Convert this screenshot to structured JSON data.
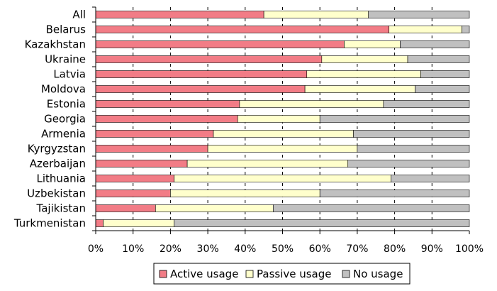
{
  "chart_data": {
    "type": "bar",
    "orientation": "horizontal",
    "stacked": "percent",
    "categories": [
      "All",
      "Belarus",
      "Kazakhstan",
      "Ukraine",
      "Latvia",
      "Moldova",
      "Estonia",
      "Georgia",
      "Armenia",
      "Kyrgyzstan",
      "Azerbaijan",
      "Lithuania",
      "Uzbekistan",
      "Tajikistan",
      "Turkmenistan"
    ],
    "series": [
      {
        "name": "Active usage",
        "color": "#f27c86",
        "values": [
          45,
          78.5,
          66.5,
          60.5,
          56.5,
          56,
          38.5,
          38,
          31.5,
          30,
          24.5,
          21,
          20,
          16,
          2
        ]
      },
      {
        "name": "Passive usage",
        "color": "#ffffcc",
        "values": [
          28,
          19.5,
          15,
          23,
          30.5,
          29.5,
          38.5,
          22,
          37.5,
          40,
          43,
          58,
          40,
          31.5,
          19
        ]
      },
      {
        "name": "No usage",
        "color": "#c0c0c0",
        "values": [
          27,
          2,
          18.5,
          16.5,
          13,
          14.5,
          23,
          40,
          31,
          30,
          32.5,
          21,
          40,
          52.5,
          79
        ]
      }
    ],
    "xlim": [
      0,
      100
    ],
    "xticks": [
      "0%",
      "10%",
      "20%",
      "30%",
      "40%",
      "50%",
      "60%",
      "70%",
      "80%",
      "90%",
      "100%"
    ],
    "grid": "vertical dashed",
    "legend_position": "bottom"
  }
}
